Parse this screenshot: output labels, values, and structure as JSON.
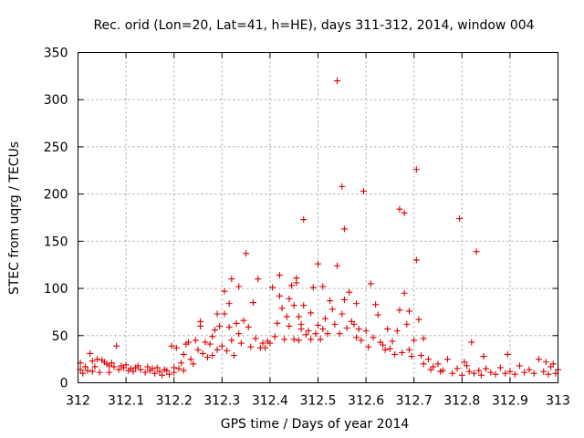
{
  "chart_data": {
    "type": "scatter",
    "title": "Rec. orid (Lon=20, Lat=41, h=HE), days 311-312, 2014, window 004",
    "xlabel": "GPS time / Days of year 2014",
    "ylabel": "STEC from uqrg / TECUs",
    "xlim": [
      312,
      313
    ],
    "ylim": [
      0,
      350
    ],
    "xticks": [
      312,
      312.1,
      312.2,
      312.3,
      312.4,
      312.5,
      312.6,
      312.7,
      312.8,
      312.9,
      313
    ],
    "xtick_labels": [
      "312",
      "312.1",
      "312.2",
      "312.3",
      "312.4",
      "312.5",
      "312.6",
      "312.7",
      "312.8",
      "312.9",
      "313"
    ],
    "yticks": [
      0,
      50,
      100,
      150,
      200,
      250,
      300,
      350
    ],
    "ytick_labels": [
      "0",
      "50",
      "100",
      "150",
      "200",
      "250",
      "300",
      "350"
    ],
    "grid": true,
    "marker": "+",
    "color": "#dd0000",
    "series": [
      {
        "name": "STEC",
        "points": [
          [
            312.005,
            21
          ],
          [
            312.005,
            14
          ],
          [
            312.01,
            10
          ],
          [
            312.015,
            17
          ],
          [
            312.02,
            13
          ],
          [
            312.025,
            31
          ],
          [
            312.03,
            23
          ],
          [
            312.03,
            12
          ],
          [
            312.035,
            17
          ],
          [
            312.04,
            25
          ],
          [
            312.045,
            11
          ],
          [
            312.05,
            24
          ],
          [
            312.055,
            22
          ],
          [
            312.06,
            20
          ],
          [
            312.065,
            18
          ],
          [
            312.065,
            11
          ],
          [
            312.07,
            21
          ],
          [
            312.075,
            17
          ],
          [
            312.08,
            39
          ],
          [
            312.085,
            14
          ],
          [
            312.09,
            18
          ],
          [
            312.095,
            16
          ],
          [
            312.1,
            19
          ],
          [
            312.105,
            13
          ],
          [
            312.11,
            15
          ],
          [
            312.115,
            12
          ],
          [
            312.12,
            16
          ],
          [
            312.125,
            18
          ],
          [
            312.13,
            14
          ],
          [
            312.14,
            11
          ],
          [
            312.145,
            17
          ],
          [
            312.15,
            13
          ],
          [
            312.155,
            15
          ],
          [
            312.16,
            10
          ],
          [
            312.165,
            16
          ],
          [
            312.17,
            12
          ],
          [
            312.175,
            8
          ],
          [
            312.18,
            14
          ],
          [
            312.185,
            13
          ],
          [
            312.19,
            9
          ],
          [
            312.195,
            39
          ],
          [
            312.2,
            11
          ],
          [
            312.2,
            16
          ],
          [
            312.205,
            37
          ],
          [
            312.21,
            15
          ],
          [
            312.215,
            21
          ],
          [
            312.22,
            30
          ],
          [
            312.22,
            13
          ],
          [
            312.225,
            41
          ],
          [
            312.23,
            43
          ],
          [
            312.235,
            25
          ],
          [
            312.24,
            20
          ],
          [
            312.245,
            45
          ],
          [
            312.25,
            35
          ],
          [
            312.255,
            60
          ],
          [
            312.255,
            65
          ],
          [
            312.26,
            31
          ],
          [
            312.265,
            43
          ],
          [
            312.27,
            27
          ],
          [
            312.275,
            41
          ],
          [
            312.28,
            49
          ],
          [
            312.28,
            29
          ],
          [
            312.285,
            56
          ],
          [
            312.29,
            73
          ],
          [
            312.29,
            35
          ],
          [
            312.295,
            60
          ],
          [
            312.3,
            39
          ],
          [
            312.305,
            97
          ],
          [
            312.305,
            73
          ],
          [
            312.31,
            34
          ],
          [
            312.315,
            59
          ],
          [
            312.315,
            84
          ],
          [
            312.32,
            110
          ],
          [
            312.32,
            45
          ],
          [
            312.325,
            29
          ],
          [
            312.33,
            63
          ],
          [
            312.335,
            52
          ],
          [
            312.335,
            102
          ],
          [
            312.34,
            42
          ],
          [
            312.345,
            66
          ],
          [
            312.35,
            137
          ],
          [
            312.355,
            59
          ],
          [
            312.36,
            38
          ],
          [
            312.365,
            85
          ],
          [
            312.37,
            47
          ],
          [
            312.375,
            110
          ],
          [
            312.38,
            37
          ],
          [
            312.385,
            42
          ],
          [
            312.39,
            37
          ],
          [
            312.395,
            44
          ],
          [
            312.4,
            42
          ],
          [
            312.405,
            101
          ],
          [
            312.41,
            49
          ],
          [
            312.415,
            63
          ],
          [
            312.42,
            114
          ],
          [
            312.42,
            92
          ],
          [
            312.425,
            79
          ],
          [
            312.43,
            46
          ],
          [
            312.435,
            70
          ],
          [
            312.44,
            89
          ],
          [
            312.44,
            60
          ],
          [
            312.445,
            103
          ],
          [
            312.45,
            82
          ],
          [
            312.45,
            46
          ],
          [
            312.455,
            111
          ],
          [
            312.455,
            106
          ],
          [
            312.46,
            70
          ],
          [
            312.46,
            45
          ],
          [
            312.465,
            62
          ],
          [
            312.465,
            57
          ],
          [
            312.47,
            173
          ],
          [
            312.47,
            82
          ],
          [
            312.475,
            51
          ],
          [
            312.48,
            55
          ],
          [
            312.485,
            74
          ],
          [
            312.485,
            46
          ],
          [
            312.49,
            101
          ],
          [
            312.495,
            52
          ],
          [
            312.5,
            126
          ],
          [
            312.5,
            61
          ],
          [
            312.505,
            46
          ],
          [
            312.51,
            102
          ],
          [
            312.51,
            57
          ],
          [
            312.515,
            68
          ],
          [
            312.52,
            52
          ],
          [
            312.525,
            87
          ],
          [
            312.53,
            78
          ],
          [
            312.535,
            62
          ],
          [
            312.54,
            320
          ],
          [
            312.54,
            124
          ],
          [
            312.545,
            52
          ],
          [
            312.55,
            208
          ],
          [
            312.55,
            73
          ],
          [
            312.555,
            163
          ],
          [
            312.555,
            88
          ],
          [
            312.56,
            58
          ],
          [
            312.565,
            96
          ],
          [
            312.57,
            65
          ],
          [
            312.575,
            62
          ],
          [
            312.58,
            84
          ],
          [
            312.58,
            48
          ],
          [
            312.585,
            57
          ],
          [
            312.59,
            45
          ],
          [
            312.595,
            203
          ],
          [
            312.6,
            55
          ],
          [
            312.605,
            38
          ],
          [
            312.61,
            105
          ],
          [
            312.615,
            48
          ],
          [
            312.62,
            83
          ],
          [
            312.625,
            72
          ],
          [
            312.63,
            43
          ],
          [
            312.635,
            40
          ],
          [
            312.64,
            35
          ],
          [
            312.645,
            57
          ],
          [
            312.65,
            36
          ],
          [
            312.655,
            44
          ],
          [
            312.66,
            30
          ],
          [
            312.665,
            55
          ],
          [
            312.67,
            184
          ],
          [
            312.67,
            77
          ],
          [
            312.675,
            32
          ],
          [
            312.68,
            180
          ],
          [
            312.68,
            95
          ],
          [
            312.685,
            62
          ],
          [
            312.69,
            76
          ],
          [
            312.69,
            35
          ],
          [
            312.695,
            28
          ],
          [
            312.7,
            45
          ],
          [
            312.705,
            226
          ],
          [
            312.705,
            130
          ],
          [
            312.71,
            67
          ],
          [
            312.715,
            29
          ],
          [
            312.72,
            47
          ],
          [
            312.72,
            20
          ],
          [
            312.73,
            25
          ],
          [
            312.735,
            14
          ],
          [
            312.74,
            17
          ],
          [
            312.75,
            20
          ],
          [
            312.755,
            12
          ],
          [
            312.76,
            13
          ],
          [
            312.77,
            25
          ],
          [
            312.78,
            10
          ],
          [
            312.79,
            15
          ],
          [
            312.795,
            174
          ],
          [
            312.8,
            8
          ],
          [
            312.805,
            22
          ],
          [
            312.81,
            18
          ],
          [
            312.815,
            12
          ],
          [
            312.82,
            43
          ],
          [
            312.825,
            10
          ],
          [
            312.83,
            139
          ],
          [
            312.835,
            13
          ],
          [
            312.84,
            8
          ],
          [
            312.845,
            28
          ],
          [
            312.85,
            15
          ],
          [
            312.86,
            11
          ],
          [
            312.87,
            9
          ],
          [
            312.88,
            16
          ],
          [
            312.89,
            10
          ],
          [
            312.895,
            30
          ],
          [
            312.9,
            12
          ],
          [
            312.91,
            9
          ],
          [
            312.92,
            18
          ],
          [
            312.93,
            11
          ],
          [
            312.94,
            14
          ],
          [
            312.95,
            10
          ],
          [
            312.96,
            25
          ],
          [
            312.97,
            12
          ],
          [
            312.975,
            22
          ],
          [
            312.98,
            9
          ],
          [
            312.985,
            17
          ],
          [
            312.99,
            20
          ],
          [
            312.995,
            10
          ],
          [
            313.0,
            14
          ]
        ]
      }
    ]
  }
}
